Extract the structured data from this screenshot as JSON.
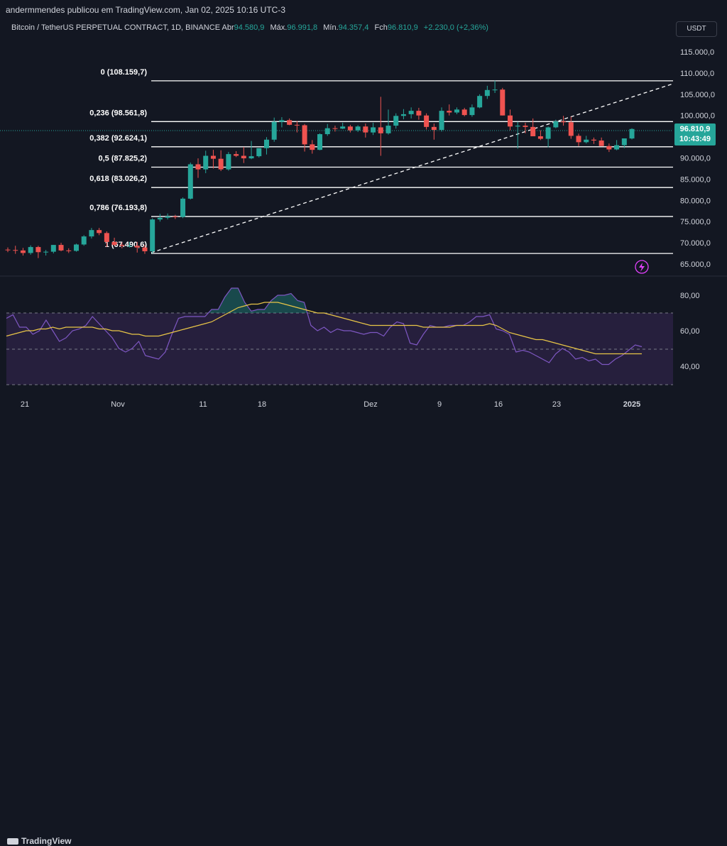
{
  "header": {
    "publisher": "andermmendes publicou em TradingView.com, Jan 02, 2025 10:16 UTC-3"
  },
  "legend": {
    "symbol": "Bitcoin / TetherUS PERPETUAL CONTRACT, 1D, BINANCE",
    "open_label": "Abr",
    "open": "94.580,9",
    "high_label": "Máx.",
    "high": "96.991,8",
    "low_label": "Mín.",
    "low": "94.357,4",
    "close_label": "Fch",
    "close": "96.810,9",
    "change": "+2.230,0 (+2,36%)"
  },
  "currency_button": "USDT",
  "price_axis": [
    "115.000,0",
    "110.000,0",
    "105.000,0",
    "100.000,0",
    "95.000,0",
    "90.000,0",
    "85.000,0",
    "80.000,0",
    "75.000,0",
    "70.000,0",
    "65.000,0"
  ],
  "current_price": {
    "value": "96.810,9",
    "countdown": "10:43:49"
  },
  "fib_levels": [
    {
      "label": "0 (108.159,7)",
      "price": 108159.7
    },
    {
      "label": "0,236 (98.561,8)",
      "price": 98561.8
    },
    {
      "label": "0,382 (92.624,1)",
      "price": 92624.1
    },
    {
      "label": "0,5 (87.825,2)",
      "price": 87825.2
    },
    {
      "label": "0,618 (83.026,2)",
      "price": 83026.2
    },
    {
      "label": "0,786 (76.193,8)",
      "price": 76193.8
    },
    {
      "label": "1 (67.490,6)",
      "price": 67490.6
    }
  ],
  "rsi_axis": [
    "80,00",
    "60,00",
    "40,00"
  ],
  "time_axis": [
    "21",
    "Nov",
    "11",
    "18",
    "Dez",
    "9",
    "16",
    "23",
    "2025"
  ],
  "footer": {
    "brand": "TradingView"
  },
  "colors": {
    "up": "#26a69a",
    "down": "#ef5350",
    "background": "#131722",
    "rsi": "#7e57c2",
    "rsi_ma": "#e8c547"
  },
  "chart_data": {
    "type": "candlestick",
    "title": "Bitcoin / TetherUS PERPETUAL CONTRACT, 1D, BINANCE",
    "ylim": [
      63000,
      118000
    ],
    "candles": [
      [
        68400,
        68900,
        67800,
        68300
      ],
      [
        68300,
        69300,
        67400,
        68200
      ],
      [
        68200,
        68800,
        67000,
        67600
      ],
      [
        67600,
        69400,
        67200,
        69000
      ],
      [
        69000,
        69300,
        66400,
        67800
      ],
      [
        67800,
        68300,
        67000,
        67900
      ],
      [
        67900,
        69500,
        67500,
        69500
      ],
      [
        69500,
        70000,
        68000,
        68200
      ],
      [
        68200,
        68700,
        67600,
        68100
      ],
      [
        68100,
        69800,
        67900,
        69600
      ],
      [
        69600,
        71800,
        69300,
        71500
      ],
      [
        71500,
        73500,
        71000,
        73000
      ],
      [
        73000,
        73500,
        71800,
        72300
      ],
      [
        72300,
        72700,
        69000,
        70200
      ],
      [
        70200,
        71200,
        69200,
        69500
      ],
      [
        69500,
        70100,
        68700,
        69300
      ],
      [
        69300,
        70200,
        68900,
        69300
      ],
      [
        69300,
        70200,
        67700,
        68900
      ],
      [
        68900,
        69500,
        67400,
        68000
      ],
      [
        68000,
        75800,
        67500,
        75500
      ],
      [
        75500,
        76800,
        75000,
        75900
      ],
      [
        75900,
        76900,
        75500,
        76200
      ],
      [
        76200,
        76600,
        75600,
        76100
      ],
      [
        76100,
        80700,
        75800,
        80400
      ],
      [
        80400,
        88900,
        80200,
        88500
      ],
      [
        88500,
        89900,
        85300,
        87300
      ],
      [
        87300,
        91700,
        86400,
        90500
      ],
      [
        90500,
        91900,
        87500,
        89800
      ],
      [
        89800,
        91800,
        86900,
        87300
      ],
      [
        87300,
        91400,
        87000,
        90900
      ],
      [
        90900,
        91600,
        90200,
        90500
      ],
      [
        90500,
        92600,
        88800,
        89900
      ],
      [
        89900,
        94000,
        89700,
        90400
      ],
      [
        90400,
        92300,
        90100,
        92300
      ],
      [
        92300,
        94900,
        90800,
        94300
      ],
      [
        94300,
        99500,
        93800,
        98500
      ],
      [
        98500,
        99600,
        97200,
        98900
      ],
      [
        98900,
        99300,
        97700,
        97800
      ],
      [
        97800,
        98700,
        96000,
        97700
      ],
      [
        97700,
        98000,
        91500,
        93200
      ],
      [
        93200,
        94200,
        91000,
        91900
      ],
      [
        91900,
        95800,
        91800,
        95600
      ],
      [
        95600,
        98000,
        95200,
        97000
      ],
      [
        97000,
        97600,
        96200,
        96900
      ],
      [
        96900,
        98300,
        96800,
        97400
      ],
      [
        97400,
        97800,
        96000,
        96500
      ],
      [
        96500,
        97700,
        96100,
        97400
      ],
      [
        97400,
        98100,
        94800,
        96000
      ],
      [
        96000,
        98300,
        95400,
        97200
      ],
      [
        97200,
        104400,
        90500,
        95800
      ],
      [
        95800,
        101400,
        95500,
        97600
      ],
      [
        97600,
        100500,
        96900,
        99900
      ],
      [
        99900,
        101500,
        99100,
        100300
      ],
      [
        100300,
        101900,
        99300,
        101100
      ],
      [
        101100,
        101800,
        99000,
        100000
      ],
      [
        100000,
        100500,
        96700,
        97300
      ],
      [
        97300,
        98100,
        94300,
        96600
      ],
      [
        96600,
        101900,
        96200,
        101100
      ],
      [
        101100,
        102600,
        100000,
        100700
      ],
      [
        100700,
        101900,
        100300,
        101400
      ],
      [
        101400,
        101800,
        99800,
        100100
      ],
      [
        100100,
        102600,
        99700,
        101900
      ],
      [
        101900,
        105000,
        101700,
        104600
      ],
      [
        104600,
        107000,
        103900,
        106000
      ],
      [
        106000,
        108200,
        105300,
        106100
      ],
      [
        106100,
        106500,
        100000,
        100000
      ],
      [
        100000,
        101400,
        96500,
        97400
      ],
      [
        97400,
        98500,
        92200,
        97600
      ],
      [
        97600,
        98300,
        95800,
        97300
      ],
      [
        97300,
        99300,
        95300,
        95100
      ],
      [
        95100,
        96500,
        94200,
        94500
      ],
      [
        94500,
        97400,
        92500,
        97200
      ],
      [
        97200,
        99000,
        97000,
        98600
      ],
      [
        98600,
        99900,
        97600,
        98400
      ],
      [
        98400,
        99700,
        94500,
        95200
      ],
      [
        95200,
        95700,
        92800,
        93700
      ],
      [
        93700,
        95200,
        93400,
        94300
      ],
      [
        94300,
        94800,
        93300,
        94100
      ],
      [
        94100,
        94800,
        92900,
        92800
      ],
      [
        92800,
        93400,
        91400,
        92000
      ],
      [
        92000,
        94200,
        91800,
        93000
      ],
      [
        93000,
        94400,
        92300,
        94600
      ],
      [
        94580,
        96990,
        94360,
        96810
      ]
    ]
  }
}
